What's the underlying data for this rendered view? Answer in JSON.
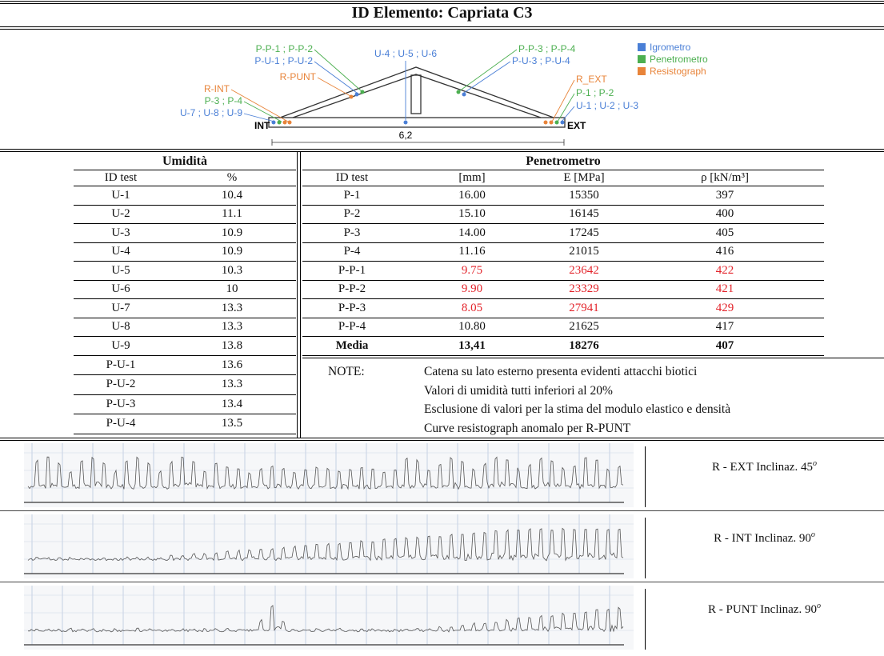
{
  "header": {
    "title": "ID Elemento: Capriata C3"
  },
  "diagram": {
    "left_labels": [
      "P-P-1 ; P-P-2",
      "P-U-1 ; P-U-2",
      "R-PUNT",
      "R-INT",
      "P-3 ; P-4",
      "U-7 ; U-8 ; U-9"
    ],
    "center_label": "U-4 ; U-5 ; U-6",
    "right_labels": [
      "P-P-3 ; P-P-4",
      "P-U-3 ; P-U-4",
      "R_EXT",
      "P-1 ; P-2",
      "U-1 ; U-2 ; U-3"
    ],
    "int": "INT",
    "ext": "EXT",
    "dimension": "6,2",
    "legend": [
      "Igrometro",
      "Penetrometro",
      "Resistograph"
    ]
  },
  "umidita": {
    "title": "Umidità",
    "columns": [
      "ID test",
      "%"
    ],
    "rows": [
      [
        "U-1",
        "10.4"
      ],
      [
        "U-2",
        "11.1"
      ],
      [
        "U-3",
        "10.9"
      ],
      [
        "U-4",
        "10.9"
      ],
      [
        "U-5",
        "10.3"
      ],
      [
        "U-6",
        "10"
      ],
      [
        "U-7",
        "13.3"
      ],
      [
        "U-8",
        "13.3"
      ],
      [
        "U-9",
        "13.8"
      ],
      [
        "P-U-1",
        "13.6"
      ],
      [
        "P-U-2",
        "13.3"
      ],
      [
        "P-U-3",
        "13.4"
      ],
      [
        "P-U-4",
        "13.5"
      ]
    ]
  },
  "penetrometro": {
    "title": "Penetrometro",
    "columns": [
      "ID test",
      "[mm]",
      "E [MPa]",
      "ρ [kN/m³]"
    ],
    "rows": [
      [
        "P-1",
        "16.00",
        "15350",
        "397"
      ],
      [
        "P-2",
        "15.10",
        "16145",
        "400"
      ],
      [
        "P-3",
        "14.00",
        "17245",
        "405"
      ],
      [
        "P-4",
        "11.16",
        "21015",
        "416"
      ],
      [
        "P-P-1",
        "9.75",
        "23642",
        "422"
      ],
      [
        "P-P-2",
        "9.90",
        "23329",
        "421"
      ],
      [
        "P-P-3",
        "8.05",
        "27941",
        "429"
      ],
      [
        "P-P-4",
        "10.80",
        "21625",
        "417"
      ],
      [
        "Media",
        "13,41",
        "18276",
        "407"
      ]
    ],
    "notes": {
      "label": "NOTE:",
      "lines": [
        "Catena su lato esterno presenta evidenti attacchi biotici",
        "Valori di umidità tutti inferiori al 20%",
        "Esclusione di valori per la stima del modulo elastico e densità",
        "Curve resistograph anomalo per R-PUNT"
      ]
    }
  },
  "resistograph": [
    {
      "label": "R - EXT Inclinaz. 45",
      "sup": "o"
    },
    {
      "label": "R - INT Inclinaz. 90",
      "sup": "o"
    },
    {
      "label": "R - PUNT Inclinaz. 90",
      "sup": "o"
    }
  ]
}
